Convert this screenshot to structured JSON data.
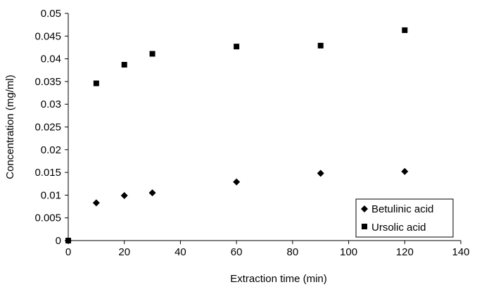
{
  "chart_data": {
    "type": "scatter",
    "xlabel": "Extraction time (min)",
    "ylabel": "Concentration (mg/ml)",
    "xlim": [
      0,
      140
    ],
    "ylim": [
      0,
      0.05
    ],
    "x_ticks": [
      "0",
      "20",
      "40",
      "60",
      "80",
      "100",
      "120",
      "140"
    ],
    "y_ticks": [
      "0",
      "0.005",
      "0.01",
      "0.015",
      "0.02",
      "0.025",
      "0.03",
      "0.035",
      "0.04",
      "0.045",
      "0.05"
    ],
    "grid": false,
    "legend_position": "bottom-right",
    "series": [
      {
        "name": "Betulinic acid",
        "marker": "diamond",
        "color": "#000000",
        "points": [
          [
            0,
            0.0
          ],
          [
            10,
            0.0083
          ],
          [
            20,
            0.0099
          ],
          [
            30,
            0.0105
          ],
          [
            60,
            0.0129
          ],
          [
            90,
            0.0148
          ],
          [
            120,
            0.0152
          ]
        ]
      },
      {
        "name": "Ursolic acid",
        "marker": "square",
        "color": "#000000",
        "points": [
          [
            0,
            0.0
          ],
          [
            10,
            0.0346
          ],
          [
            20,
            0.0387
          ],
          [
            30,
            0.0411
          ],
          [
            60,
            0.0427
          ],
          [
            90,
            0.0429
          ],
          [
            120,
            0.0463
          ]
        ]
      }
    ]
  }
}
